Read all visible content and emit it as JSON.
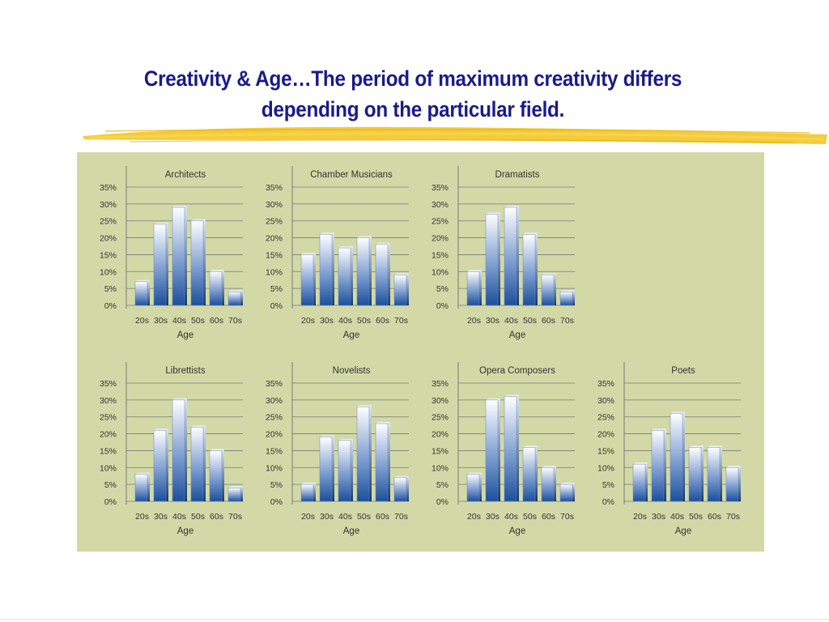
{
  "slide": {
    "title_line1": "Creativity & Age…The period of maximum creativity differs",
    "title_line2": "depending on the particular field."
  },
  "colors": {
    "title": "#1a1a8c",
    "panel_background": "#d2d9a6",
    "brush_stroke": "#f2c21b",
    "bar_top": "#ffffff",
    "bar_bottom": "#1c4f9c",
    "gridline": "#7a7a7a"
  },
  "chart_data": [
    {
      "type": "bar",
      "title": "Architects",
      "xlabel": "Age",
      "ylabel": "",
      "categories": [
        "20s",
        "30s",
        "40s",
        "50s",
        "60s",
        "70s"
      ],
      "values": [
        7,
        24,
        29,
        25,
        10,
        4
      ],
      "ylim": [
        0,
        35
      ],
      "yticks": [
        "0%",
        "5%",
        "10%",
        "15%",
        "20%",
        "25%",
        "30%",
        "35%"
      ],
      "grid": true
    },
    {
      "type": "bar",
      "title": "Chamber Musicians",
      "xlabel": "Age",
      "ylabel": "",
      "categories": [
        "20s",
        "30s",
        "40s",
        "50s",
        "60s",
        "70s"
      ],
      "values": [
        15,
        21,
        17,
        20,
        18,
        9
      ],
      "ylim": [
        0,
        35
      ],
      "yticks": [
        "0%",
        "5%",
        "10%",
        "15%",
        "20%",
        "25%",
        "30%",
        "35%"
      ],
      "grid": true
    },
    {
      "type": "bar",
      "title": "Dramatists",
      "xlabel": "Age",
      "ylabel": "",
      "categories": [
        "20s",
        "30s",
        "40s",
        "50s",
        "60s",
        "70s"
      ],
      "values": [
        10,
        27,
        29,
        21,
        9,
        4
      ],
      "ylim": [
        0,
        35
      ],
      "yticks": [
        "0%",
        "5%",
        "10%",
        "15%",
        "20%",
        "25%",
        "30%",
        "35%"
      ],
      "grid": true
    },
    {
      "type": "bar",
      "title": "Librettists",
      "xlabel": "Age",
      "ylabel": "",
      "categories": [
        "20s",
        "30s",
        "40s",
        "50s",
        "60s",
        "70s"
      ],
      "values": [
        8,
        21,
        30,
        22,
        15,
        4
      ],
      "ylim": [
        0,
        35
      ],
      "yticks": [
        "0%",
        "5%",
        "10%",
        "15%",
        "20%",
        "25%",
        "30%",
        "35%"
      ],
      "grid": true
    },
    {
      "type": "bar",
      "title": "Novelists",
      "xlabel": "Age",
      "ylabel": "",
      "categories": [
        "20s",
        "30s",
        "40s",
        "50s",
        "60s",
        "70s"
      ],
      "values": [
        5,
        19,
        18,
        28,
        23,
        7
      ],
      "ylim": [
        0,
        35
      ],
      "yticks": [
        "0%",
        "5%",
        "10%",
        "15%",
        "20%",
        "25%",
        "30%",
        "35%"
      ],
      "grid": true
    },
    {
      "type": "bar",
      "title": "Opera Composers",
      "xlabel": "Age",
      "ylabel": "",
      "categories": [
        "20s",
        "30s",
        "40s",
        "50s",
        "60s",
        "70s"
      ],
      "values": [
        8,
        30,
        31,
        16,
        10,
        5
      ],
      "ylim": [
        0,
        35
      ],
      "yticks": [
        "0%",
        "5%",
        "10%",
        "15%",
        "20%",
        "25%",
        "30%",
        "35%"
      ],
      "grid": true
    },
    {
      "type": "bar",
      "title": "Poets",
      "xlabel": "Age",
      "ylabel": "",
      "categories": [
        "20s",
        "30s",
        "40s",
        "50s",
        "60s",
        "70s"
      ],
      "values": [
        11,
        21,
        26,
        16,
        16,
        10
      ],
      "ylim": [
        0,
        35
      ],
      "yticks": [
        "0%",
        "5%",
        "10%",
        "15%",
        "20%",
        "25%",
        "30%",
        "35%"
      ],
      "grid": true
    }
  ]
}
